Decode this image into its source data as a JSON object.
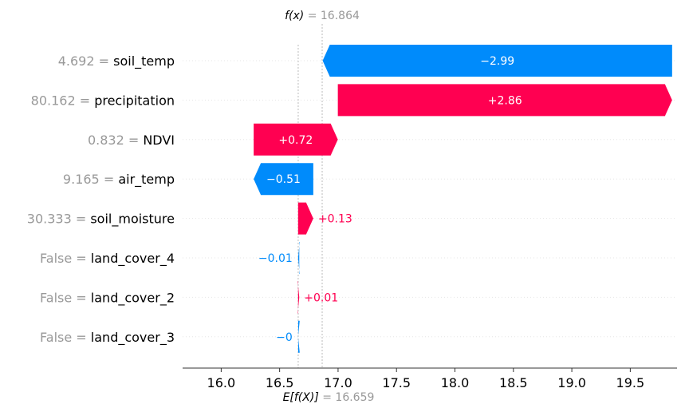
{
  "chart_data": {
    "type": "waterfall",
    "title": "",
    "xlabel": "",
    "ylabel": "",
    "base_value": 16.659,
    "output_value": 16.864,
    "top_label": {
      "prefix": "f(x)",
      "equals": " = ",
      "value": "16.864"
    },
    "bottom_label": {
      "prefix": "E[f(X)]",
      "equals": " = ",
      "value": "16.659"
    },
    "xlim": [
      15.67,
      19.9
    ],
    "xticks": [
      16.0,
      16.5,
      17.0,
      17.5,
      18.0,
      18.5,
      19.0,
      19.5
    ],
    "xtick_labels": [
      "16.0",
      "16.5",
      "17.0",
      "17.5",
      "18.0",
      "18.5",
      "19.0",
      "19.5"
    ],
    "features": [
      {
        "value_text": "4.692",
        "name": "soil_temp",
        "shap": -2.99,
        "label": "−2.99"
      },
      {
        "value_text": "80.162",
        "name": "precipitation",
        "shap": 2.86,
        "label": "+2.86"
      },
      {
        "value_text": "0.832",
        "name": "NDVI",
        "shap": 0.72,
        "label": "+0.72"
      },
      {
        "value_text": "9.165",
        "name": "air_temp",
        "shap": -0.51,
        "label": "−0.51"
      },
      {
        "value_text": "30.333",
        "name": "soil_moisture",
        "shap": 0.13,
        "label": "+0.13"
      },
      {
        "value_text": "False",
        "name": "land_cover_4",
        "shap": -0.01,
        "label": "−0.01"
      },
      {
        "value_text": "False",
        "name": "land_cover_2",
        "shap": 0.01,
        "label": "+0.01"
      },
      {
        "value_text": "False",
        "name": "land_cover_3",
        "shap": -0.001,
        "label": "−0"
      }
    ],
    "colors": {
      "positive": "#ff0051",
      "negative": "#008bfb",
      "muted": "#999999",
      "text": "#000000"
    },
    "grid": false
  }
}
